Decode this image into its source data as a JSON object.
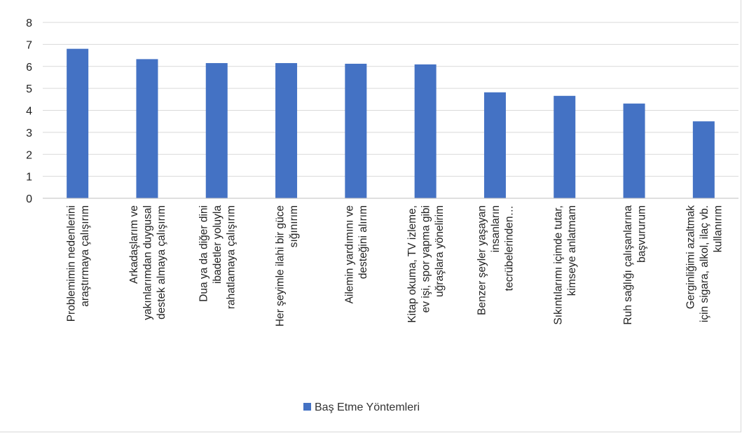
{
  "chart_data": {
    "type": "bar",
    "title": "",
    "xlabel": "",
    "ylabel": "",
    "ylim": [
      0,
      8
    ],
    "yticks": [
      0,
      1,
      2,
      3,
      4,
      5,
      6,
      7,
      8
    ],
    "grid": true,
    "legend_position": "bottom",
    "bar_color": "#4472C4",
    "categories": [
      [
        "Problemimin nedenlerini",
        "araştırmaya çalışırım"
      ],
      [
        "Arkadaşlarım ve",
        "yakınlarımdan duygusal",
        "destek almaya çalışırım"
      ],
      [
        "Dua ya da diğer dini",
        "ibadetler yoluyla",
        "rahatlamaya çalışırım"
      ],
      [
        "Her şeyimle ilahi bir güce",
        "sığınırım"
      ],
      [
        "Ailemin yardımını ve",
        "desteğini alırım"
      ],
      [
        "Kitap okuma, TV izleme,",
        "ev işi, spor yapma gibi",
        "uğraşlara yönelirim"
      ],
      [
        "Benzer şeyler yaşayan",
        "insanların",
        "tecrübelerinden…"
      ],
      [
        "Sıkıntılarımı içimde tutar,",
        "kimseye anlatmam"
      ],
      [
        "Ruh sağlığı çalışanlarına",
        "başvururum"
      ],
      [
        "Gerginliğimi azaltmak",
        "için sigara, alkol, ilaç vb.",
        "kullanırım"
      ]
    ],
    "series": [
      {
        "name": "Baş Etme Yöntemleri",
        "values": [
          6.8,
          6.33,
          6.15,
          6.15,
          6.12,
          6.09,
          4.82,
          4.66,
          4.31,
          3.5
        ]
      }
    ]
  }
}
